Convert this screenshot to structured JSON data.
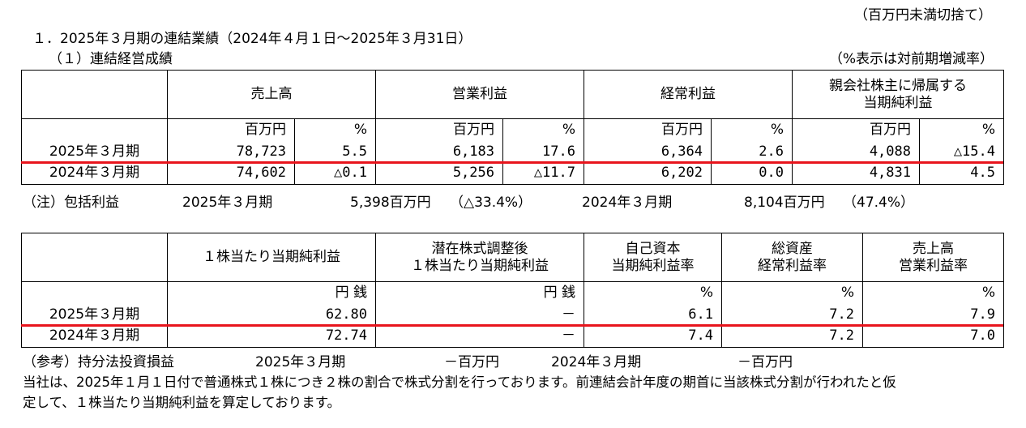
{
  "unit_note": "（百万円未満切捨て）",
  "heading": "１．2025年３月期の連結業績（2024年４月１日～2025年３月31日）",
  "sub_heading": "（１）連結経営成績",
  "pct_note": "（%表示は対前期増減率）",
  "t1": {
    "headers": [
      "売上高",
      "営業利益",
      "経常利益"
    ],
    "header4_line1": "親会社株主に帰属する",
    "header4_line2": "当期純利益",
    "unit_amount": "百万円",
    "unit_pct": "%",
    "rows": [
      {
        "label": "2025年３月期",
        "cells": [
          "78,723",
          "5.5",
          "6,183",
          "17.6",
          "6,364",
          "2.6",
          "4,088",
          "△15.4"
        ]
      },
      {
        "label": "2024年３月期",
        "cells": [
          "74,602",
          "△0.1",
          "5,256",
          "△11.7",
          "6,202",
          "0.0",
          "4,831",
          "4.5"
        ]
      }
    ]
  },
  "note1": {
    "label": "（注）包括利益",
    "p1": "2025年３月期",
    "v1": "5,398百万円",
    "c1": "（△33.4%）",
    "p2": "2024年３月期",
    "v2": "8,104百万円",
    "c2": "（47.4%）"
  },
  "t2": {
    "h1": "１株当たり当期純利益",
    "h2_line1": "潜在株式調整後",
    "h2_line2": "１株当たり当期純利益",
    "h3_line1": "自己資本",
    "h3_line2": "当期純利益率",
    "h4_line1": "総資産",
    "h4_line2": "経常利益率",
    "h5_line1": "売上高",
    "h5_line2": "営業利益率",
    "unit_yen": "円 銭",
    "unit_pct": "%",
    "rows": [
      {
        "label": "2025年３月期",
        "cells": [
          "62.80",
          "－",
          "6.1",
          "7.2",
          "7.9"
        ]
      },
      {
        "label": "2024年３月期",
        "cells": [
          "72.74",
          "－",
          "7.4",
          "7.2",
          "7.0"
        ]
      }
    ]
  },
  "note2": {
    "label": "（参考）持分法投資損益",
    "p1": "2025年３月期",
    "v1": "－百万円",
    "p2": "2024年３月期",
    "v2": "－百万円"
  },
  "footnote_line1": "当社は、2025年１月１日付で普通株式１株につき２株の割合で株式分割を行っております。前連結会計年度の期首に当該株式分割が行われたと仮",
  "footnote_line2": "定して、１株当たり当期純利益を算定しております。"
}
